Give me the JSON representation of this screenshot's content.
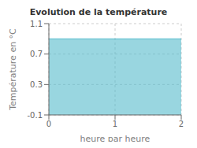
{
  "chart_data": {
    "type": "area",
    "title": "Evolution de la température",
    "xlabel": "heure par heure",
    "ylabel": "Température en °C",
    "x": [
      0,
      2
    ],
    "values": [
      0.9,
      0.9
    ],
    "color": "#55bbcc",
    "xlim": [
      0,
      2
    ],
    "ylim": [
      -0.1,
      1.1
    ],
    "xticks": [
      0,
      1,
      2
    ],
    "yticks": [
      -0.1,
      0.3,
      0.7,
      1.1
    ],
    "grid": true
  }
}
